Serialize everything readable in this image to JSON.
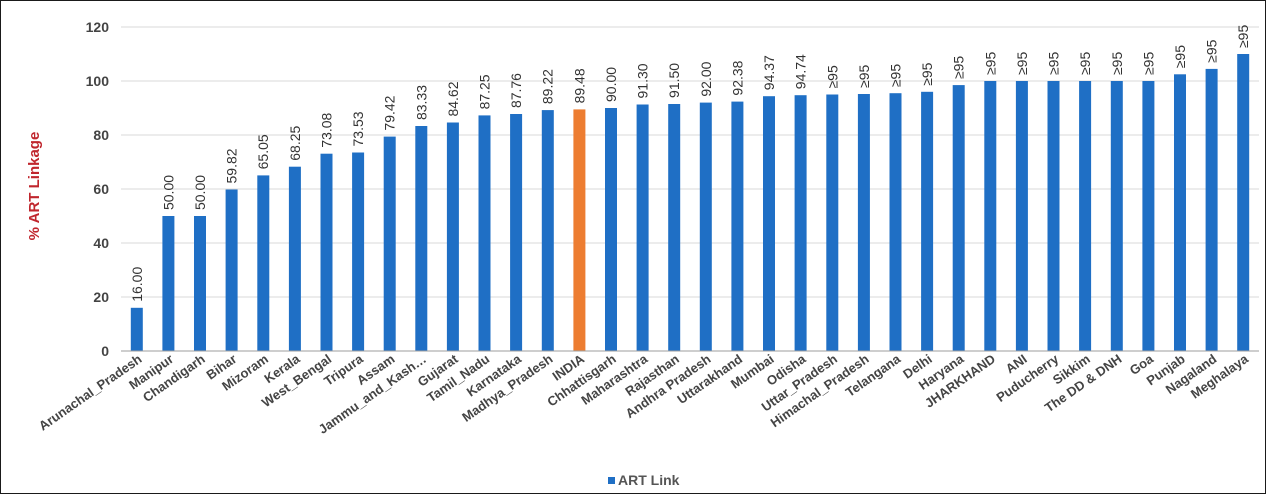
{
  "chart_data": {
    "type": "bar",
    "ylabel": "% ART Linkage",
    "ylim": [
      0,
      120
    ],
    "yticks": [
      0,
      20,
      40,
      60,
      80,
      100,
      120
    ],
    "grid": true,
    "legend_position": "bottom",
    "series": [
      {
        "name": "ART Link",
        "color": "#1f6fc5",
        "highlight_color": "#ed7d31",
        "highlight_category": "INDIA"
      }
    ],
    "points": [
      {
        "category": "Arunachal_Pradesh",
        "value": 16.0,
        "label": "16.00"
      },
      {
        "category": "Manipur",
        "value": 50.0,
        "label": "50.00"
      },
      {
        "category": "Chandigarh",
        "value": 50.0,
        "label": "50.00"
      },
      {
        "category": "Bihar",
        "value": 59.82,
        "label": "59.82"
      },
      {
        "category": "Mizoram",
        "value": 65.05,
        "label": "65.05"
      },
      {
        "category": "Kerala",
        "value": 68.25,
        "label": "68.25"
      },
      {
        "category": "West_Bengal",
        "value": 73.08,
        "label": "73.08"
      },
      {
        "category": "Tripura",
        "value": 73.53,
        "label": "73.53"
      },
      {
        "category": "Assam",
        "value": 79.42,
        "label": "79.42"
      },
      {
        "category": "Jammu_and_Kash…",
        "value": 83.33,
        "label": "83.33"
      },
      {
        "category": "Gujarat",
        "value": 84.62,
        "label": "84.62"
      },
      {
        "category": "Tamil_Nadu",
        "value": 87.25,
        "label": "87.25"
      },
      {
        "category": "Karnataka",
        "value": 87.76,
        "label": "87.76"
      },
      {
        "category": "Madhya_Pradesh",
        "value": 89.22,
        "label": "89.22"
      },
      {
        "category": "INDIA",
        "value": 89.48,
        "label": "89.48"
      },
      {
        "category": "Chhattisgarh",
        "value": 90.0,
        "label": "90.00"
      },
      {
        "category": "Maharashtra",
        "value": 91.3,
        "label": "91.30"
      },
      {
        "category": "Rajasthan",
        "value": 91.5,
        "label": "91.50"
      },
      {
        "category": "Andhra Pradesh",
        "value": 92.0,
        "label": "92.00"
      },
      {
        "category": "Uttarakhand",
        "value": 92.38,
        "label": "92.38"
      },
      {
        "category": "Mumbai",
        "value": 94.37,
        "label": "94.37"
      },
      {
        "category": "Odisha",
        "value": 94.74,
        "label": "94.74"
      },
      {
        "category": "Uttar_Pradesh",
        "value": 95.0,
        "label": "≥95"
      },
      {
        "category": "Himachal_Pradesh",
        "value": 95.2,
        "label": "≥95"
      },
      {
        "category": "Telangana",
        "value": 95.5,
        "label": "≥95"
      },
      {
        "category": "Delhi",
        "value": 96.0,
        "label": "≥95"
      },
      {
        "category": "Haryana",
        "value": 98.5,
        "label": "≥95"
      },
      {
        "category": "JHARKHAND",
        "value": 100.0,
        "label": "≥95"
      },
      {
        "category": "ANI",
        "value": 100.0,
        "label": "≥95"
      },
      {
        "category": "Puducherry",
        "value": 100.0,
        "label": "≥95"
      },
      {
        "category": "Sikkim",
        "value": 100.0,
        "label": "≥95"
      },
      {
        "category": "The DD & DNH",
        "value": 100.0,
        "label": "≥95"
      },
      {
        "category": "Goa",
        "value": 100.0,
        "label": "≥95"
      },
      {
        "category": "Punjab",
        "value": 102.5,
        "label": "≥95"
      },
      {
        "category": "Nagaland",
        "value": 104.5,
        "label": "≥95"
      },
      {
        "category": "Meghalaya",
        "value": 110.0,
        "label": "≥95"
      }
    ]
  }
}
